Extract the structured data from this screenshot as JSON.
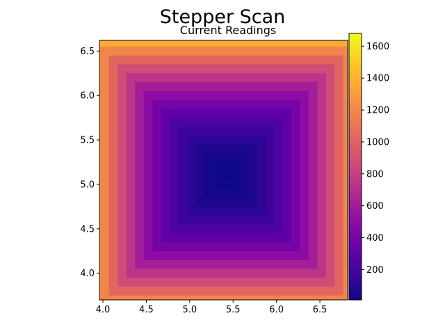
{
  "chart_data": {
    "type": "heatmap",
    "title": "Stepper Scan",
    "subtitle": "Current Readings",
    "xlabel": "",
    "ylabel": "",
    "colormap": "plasma",
    "center": {
      "x": 5.42,
      "y": 5.1
    },
    "grid_step": 0.1,
    "xlim": [
      3.96,
      6.82
    ],
    "ylim": [
      3.7,
      6.62
    ],
    "xticks": [
      4.0,
      4.5,
      5.0,
      5.5,
      6.0,
      6.5
    ],
    "xtick_labels": [
      "4.0",
      "4.5",
      "5.0",
      "5.5",
      "6.0",
      "6.5"
    ],
    "yticks": [
      4.0,
      4.5,
      5.0,
      5.5,
      6.0,
      6.5
    ],
    "ytick_labels": [
      "4.0",
      "4.5",
      "5.0",
      "5.5",
      "6.0",
      "6.5"
    ],
    "value_description": "current increases with Chebyshev distance from center, approx 10 + 6 * d^2 where d is steps of 0.1 from center",
    "colorbar": {
      "vmin": 10,
      "vmax": 1680,
      "ticks": [
        200,
        400,
        600,
        800,
        1000,
        1200,
        1400,
        1600
      ],
      "tick_labels": [
        "200",
        "400",
        "600",
        "800",
        "1000",
        "1200",
        "1400",
        "1600"
      ]
    },
    "grid": false
  }
}
